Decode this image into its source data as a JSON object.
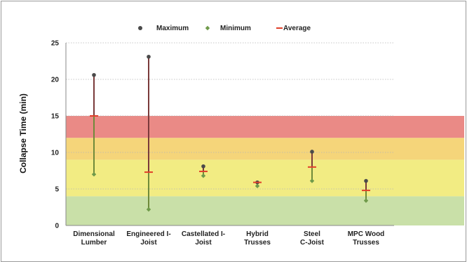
{
  "chart_data": {
    "type": "range",
    "title": "",
    "xlabel": "",
    "ylabel": "Collapse Time (min)",
    "ylim": [
      0,
      25
    ],
    "yticks": [
      0,
      5,
      10,
      15,
      20,
      25
    ],
    "grid": true,
    "legend_position": "top",
    "categories": [
      [
        "Dimensional",
        "Lumber"
      ],
      [
        "Engineered I-",
        "Joist"
      ],
      [
        "Castellated I-",
        "Joist"
      ],
      [
        "Hybrid",
        "Trusses"
      ],
      [
        "Steel",
        "C-Joist"
      ],
      [
        "MPC Wood",
        "Trusses"
      ]
    ],
    "series": [
      {
        "name": "Maximum",
        "values": [
          20.6,
          23.1,
          8.1,
          5.9,
          10.1,
          6.1
        ]
      },
      {
        "name": "Minimum",
        "values": [
          7.0,
          2.2,
          6.8,
          5.4,
          6.1,
          3.4
        ]
      },
      {
        "name": "Average",
        "values": [
          15.0,
          7.3,
          7.4,
          5.9,
          8.0,
          4.8
        ]
      }
    ],
    "bands": [
      {
        "from": 0,
        "to": 4,
        "color": "#c9e0a8"
      },
      {
        "from": 4,
        "to": 9,
        "color": "#f2ec83"
      },
      {
        "from": 9,
        "to": 12,
        "color": "#f5d57a"
      },
      {
        "from": 12,
        "to": 15,
        "color": "#ea8a86"
      }
    ],
    "colors": {
      "maximum": "#4a4a4a",
      "minimum": "#6f9a4a",
      "average": "#e0402a",
      "range_upper": "#7a3a3a",
      "range_lower": "#6f8a3a",
      "grid": "#b5b5b5"
    }
  }
}
